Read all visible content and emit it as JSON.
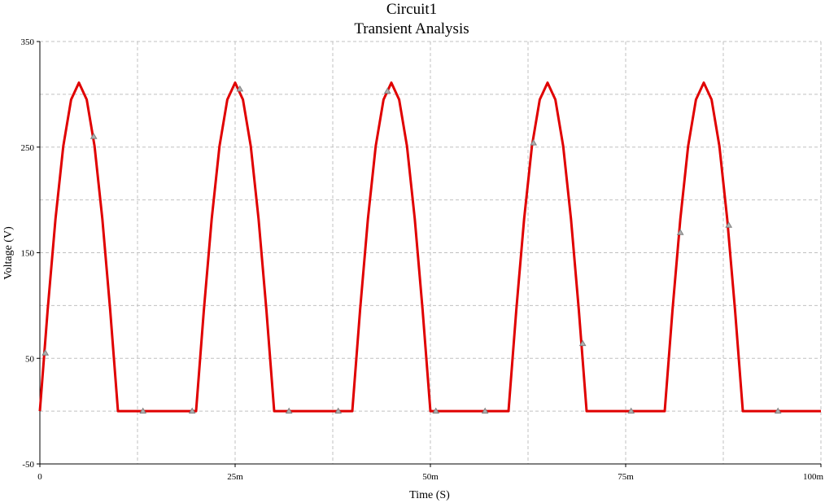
{
  "chart_data": {
    "type": "line",
    "title": "Circuit1",
    "subtitle": "Transient Analysis",
    "xlabel": "Time (S)",
    "ylabel": "Voltage (V)",
    "xlim": [
      0,
      0.1
    ],
    "ylim": [
      -50,
      350
    ],
    "x_ticks": [
      {
        "value": 0,
        "label": "0"
      },
      {
        "value": 0.025,
        "label": "25m"
      },
      {
        "value": 0.05,
        "label": "50m"
      },
      {
        "value": 0.075,
        "label": "75m"
      },
      {
        "value": 0.1,
        "label": "100m"
      }
    ],
    "y_ticks": [
      {
        "value": -50,
        "label": "-50"
      },
      {
        "value": 50,
        "label": "50"
      },
      {
        "value": 150,
        "label": "150"
      },
      {
        "value": 250,
        "label": "250"
      },
      {
        "value": 350,
        "label": "350"
      }
    ],
    "x_grid_minor": [
      0.0125,
      0.0375,
      0.0625,
      0.0875
    ],
    "y_grid_minor": [
      0,
      100,
      200,
      300
    ],
    "grid": true,
    "series": [
      {
        "color": "#e00000",
        "x": [
          0,
          0.001,
          0.002,
          0.003,
          0.004,
          0.005,
          0.006,
          0.007,
          0.008,
          0.009,
          0.01,
          0.011,
          0.012,
          0.013,
          0.014,
          0.015,
          0.016,
          0.017,
          0.018,
          0.019,
          0.02,
          0.021,
          0.022,
          0.023,
          0.024,
          0.025,
          0.026,
          0.027,
          0.028,
          0.029,
          0.03,
          0.031,
          0.032,
          0.033,
          0.034,
          0.035,
          0.036,
          0.037,
          0.038,
          0.039,
          0.04,
          0.041,
          0.042,
          0.043,
          0.044,
          0.045,
          0.046,
          0.047,
          0.048,
          0.049,
          0.05,
          0.051,
          0.052,
          0.053,
          0.054,
          0.055,
          0.056,
          0.057,
          0.058,
          0.059,
          0.06,
          0.061,
          0.062,
          0.063,
          0.064,
          0.065,
          0.066,
          0.067,
          0.068,
          0.069,
          0.07,
          0.071,
          0.072,
          0.073,
          0.074,
          0.075,
          0.076,
          0.077,
          0.078,
          0.079,
          0.08,
          0.081,
          0.082,
          0.083,
          0.084,
          0.085,
          0.086,
          0.087,
          0.088,
          0.089,
          0.09,
          0.091,
          0.092,
          0.093,
          0.094,
          0.095,
          0.096,
          0.097,
          0.098,
          0.099,
          0.1
        ],
        "y": [
          0,
          96,
          182,
          251,
          295,
          311,
          295,
          251,
          182,
          96,
          0,
          0,
          0,
          0,
          0,
          0,
          0,
          0,
          0,
          0,
          0,
          96,
          182,
          251,
          295,
          311,
          295,
          251,
          182,
          96,
          0,
          0,
          0,
          0,
          0,
          0,
          0,
          0,
          0,
          0,
          0,
          96,
          182,
          251,
          295,
          311,
          295,
          251,
          182,
          96,
          0,
          0,
          0,
          0,
          0,
          0,
          0,
          0,
          0,
          0,
          0,
          96,
          182,
          251,
          295,
          311,
          295,
          251,
          182,
          96,
          0,
          0,
          0,
          0,
          0,
          0,
          0,
          0,
          0,
          0,
          0,
          96,
          182,
          251,
          295,
          311,
          295,
          251,
          182,
          96,
          0,
          0,
          0,
          0,
          0,
          0,
          0,
          0,
          0,
          0,
          0
        ]
      }
    ],
    "markers": [
      {
        "x": 0.0007,
        "y": 55
      },
      {
        "x": 0.0069,
        "y": 260
      },
      {
        "x": 0.0132,
        "y": 0
      },
      {
        "x": 0.0195,
        "y": 0
      },
      {
        "x": 0.0256,
        "y": 305
      },
      {
        "x": 0.0319,
        "y": 0
      },
      {
        "x": 0.0382,
        "y": 0
      },
      {
        "x": 0.0445,
        "y": 303
      },
      {
        "x": 0.0507,
        "y": 0
      },
      {
        "x": 0.057,
        "y": 0
      },
      {
        "x": 0.0632,
        "y": 254
      },
      {
        "x": 0.0695,
        "y": 64
      },
      {
        "x": 0.0757,
        "y": 0
      },
      {
        "x": 0.082,
        "y": 169
      },
      {
        "x": 0.0882,
        "y": 176
      },
      {
        "x": 0.0945,
        "y": 0
      }
    ]
  }
}
